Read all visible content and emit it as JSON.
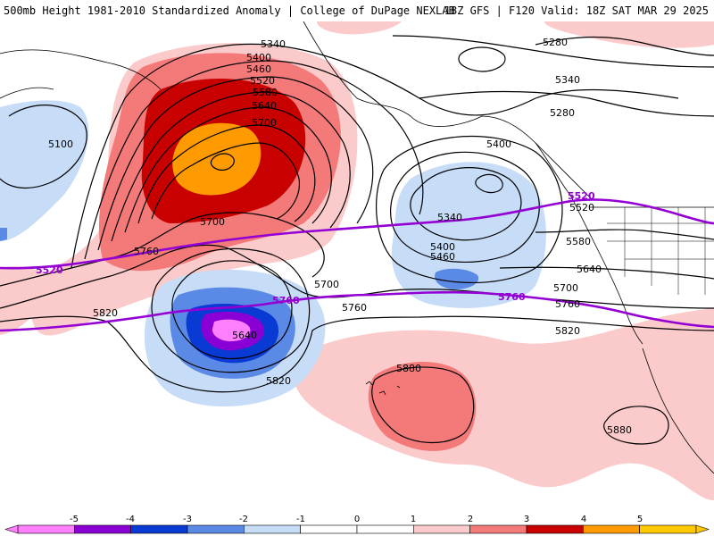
{
  "header": {
    "left_title": "500mb Height 1981-2010 Standardized Anomaly | College of DuPage NEXLAB",
    "right_title": "18Z GFS | F120 Valid: 18Z SAT MAR 29 2025"
  },
  "contour_labels": [
    "5340",
    "5400",
    "5460",
    "5520",
    "5580",
    "5640",
    "5700",
    "5100",
    "5700",
    "5760",
    "5820",
    "5520",
    "5760",
    "5640",
    "5700",
    "5760",
    "5820",
    "5280",
    "5340",
    "5400",
    "5340",
    "5280",
    "5400",
    "5460",
    "5520",
    "5520",
    "5580",
    "5640",
    "5700",
    "5760",
    "5820",
    "5880",
    "5880"
  ],
  "colors": {
    "land_outline": "#000000",
    "contour": "#000000",
    "highlight_contour": "#9400d3",
    "neg5": "#ff7fff",
    "neg4": "#8a00d4",
    "neg3": "#0a3ad4",
    "neg2": "#5a8ae6",
    "neg1": "#c6dcf7",
    "pos1": "#fbcaca",
    "pos2": "#f47a7a",
    "pos3": "#c80000",
    "pos4": "#ff9a00",
    "pos5": "#ffc800"
  },
  "legend": {
    "tick_labels": [
      "-5",
      "-4",
      "-3",
      "-2",
      "-1",
      "0",
      "1",
      "2",
      "3",
      "4",
      "5"
    ],
    "colors": [
      "#ff7fff",
      "#8a00d4",
      "#0a3ad4",
      "#5a8ae6",
      "#c6dcf7",
      "#ffffff",
      "#ffffff",
      "#fbcaca",
      "#f47a7a",
      "#c80000",
      "#ff9a00",
      "#ffc800"
    ]
  }
}
